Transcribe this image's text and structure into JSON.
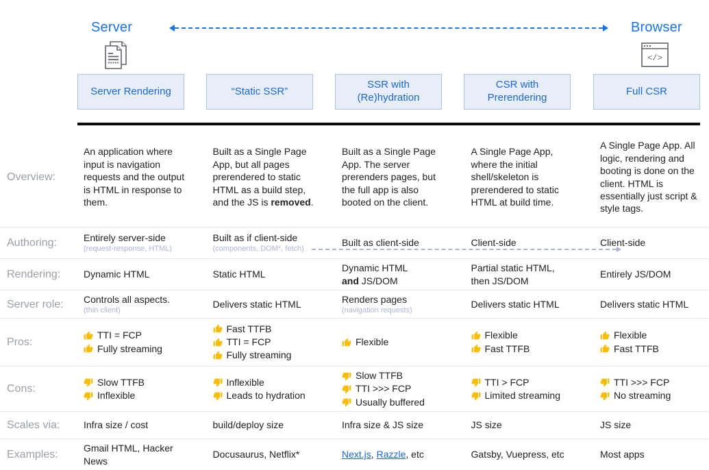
{
  "header": {
    "server_label": "Server",
    "browser_label": "Browser",
    "server_icon": "stacked-pages-icon",
    "browser_icon": "browser-window-code-icon"
  },
  "colors": {
    "accent_blue": "#1a73e8",
    "column_header_text": "#1967d2",
    "column_header_fill": "#e8eef8",
    "column_header_border": "#a9c2e8",
    "row_label_text": "#9aa0a6",
    "body_text": "#202124",
    "note_text": "#abb4dd",
    "authoring_arrow": "#aab4dd",
    "thumb_yellow": "#fbbc04",
    "link_blue": "#1967d2",
    "divider_black": "#0b0b0b"
  },
  "columns": [
    {
      "title": "Server Rendering"
    },
    {
      "title": "“Static SSR”"
    },
    {
      "title": "SSR with (Re)hydration"
    },
    {
      "title": "CSR with Prerendering"
    },
    {
      "title": "Full CSR"
    }
  ],
  "table": {
    "rows": [
      {
        "key": "overview",
        "label": "Overview:",
        "cells": [
          {
            "text": "An application where input is navigation requests and the output is HTML in response to them."
          },
          {
            "text": "Built as a Single Page App, but all pages prerendered to static HTML as a build step, and the JS is **removed**."
          },
          {
            "text": "Built as a Single Page App. The server prerenders pages, but the full app is also booted on the client."
          },
          {
            "text": "A Single Page App, where the initial shell/skeleton is prerendered to static HTML at build time."
          },
          {
            "text": "A Single Page App. All logic, rendering and booting is done on the client. HTML is essentially just script & style tags."
          }
        ]
      },
      {
        "key": "authoring",
        "label": "Authoring:",
        "cells": [
          {
            "text": "Entirely server-side",
            "note": "(request-response, HTML)"
          },
          {
            "text": "Built as if client-side",
            "note": "(components, DOM*, fetch)"
          },
          {
            "text": "Built as client-side"
          },
          {
            "text": "Client-side"
          },
          {
            "text": "Client-side"
          }
        ]
      },
      {
        "key": "rendering",
        "label": "Rendering:",
        "cells": [
          {
            "text": "Dynamic HTML"
          },
          {
            "text": "Static HTML"
          },
          {
            "text": "Dynamic HTML\n**and** JS/DOM"
          },
          {
            "text": "Partial static HTML,\nthen JS/DOM"
          },
          {
            "text": "Entirely JS/DOM"
          }
        ]
      },
      {
        "key": "server-role",
        "label": "Server role:",
        "cells": [
          {
            "text": "Controls all aspects.",
            "note": "(thin client)"
          },
          {
            "text": "Delivers static HTML"
          },
          {
            "text": "Renders pages",
            "note": "(navigation requests)"
          },
          {
            "text": "Delivers static HTML"
          },
          {
            "text": "Delivers static HTML"
          }
        ]
      },
      {
        "key": "pros",
        "label": "Pros:",
        "cells": [
          {
            "icon": "thumb-up",
            "list": [
              "TTI = FCP",
              "Fully streaming"
            ]
          },
          {
            "icon": "thumb-up",
            "list": [
              "Fast TTFB",
              "TTI = FCP",
              "Fully streaming"
            ]
          },
          {
            "icon": "thumb-up",
            "list": [
              "Flexible"
            ]
          },
          {
            "icon": "thumb-up",
            "list": [
              "Flexible",
              "Fast TTFB"
            ]
          },
          {
            "icon": "thumb-up",
            "list": [
              "Flexible",
              "Fast TTFB"
            ]
          }
        ]
      },
      {
        "key": "cons",
        "label": "Cons:",
        "cells": [
          {
            "icon": "thumb-down",
            "list": [
              "Slow TTFB",
              "Inflexible"
            ]
          },
          {
            "icon": "thumb-down",
            "list": [
              "Inflexible",
              "Leads to hydration"
            ]
          },
          {
            "icon": "thumb-down",
            "list": [
              "Slow TTFB",
              "TTI >>> FCP",
              "Usually buffered"
            ]
          },
          {
            "icon": "thumb-down",
            "list": [
              "TTI > FCP",
              "Limited streaming"
            ]
          },
          {
            "icon": "thumb-down",
            "list": [
              "TTI >>> FCP",
              "No streaming"
            ]
          }
        ]
      },
      {
        "key": "scales-via",
        "label": "Scales via:",
        "cells": [
          {
            "text": "Infra size / cost"
          },
          {
            "text": "build/deploy size"
          },
          {
            "text": "Infra size & JS size"
          },
          {
            "text": "JS size"
          },
          {
            "text": "JS size"
          }
        ]
      },
      {
        "key": "examples",
        "label": "Examples:",
        "cells": [
          {
            "text": "Gmail HTML, Hacker News"
          },
          {
            "text": "Docusaurus, Netflix*"
          },
          {
            "segments": [
              {
                "text": "Next.js",
                "link": true
              },
              {
                "text": ", "
              },
              {
                "text": "Razzle",
                "link": true
              },
              {
                "text": ", etc"
              }
            ]
          },
          {
            "text": "Gatsby, Vuepress, etc"
          },
          {
            "text": "Most apps"
          }
        ]
      }
    ]
  }
}
